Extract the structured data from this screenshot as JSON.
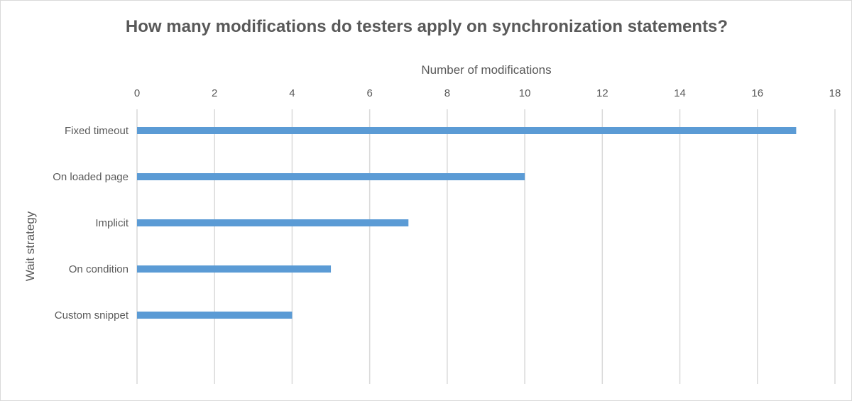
{
  "chart_data": {
    "type": "bar",
    "orientation": "horizontal",
    "title": "How many modifications do testers apply on synchronization statements?",
    "xlabel": "Number of modifications",
    "ylabel": "Wait strategy",
    "x_axis_position": "top",
    "xlim": [
      0,
      18
    ],
    "xticks": [
      0,
      2,
      4,
      6,
      8,
      10,
      12,
      14,
      16,
      18
    ],
    "grid": true,
    "legend": "none",
    "categories": [
      "Fixed timeout",
      "On loaded page",
      "Implicit",
      "On condition",
      "Custom snippet"
    ],
    "values": [
      17,
      10,
      7,
      5,
      4
    ],
    "bar_color": "#5b9bd5"
  }
}
